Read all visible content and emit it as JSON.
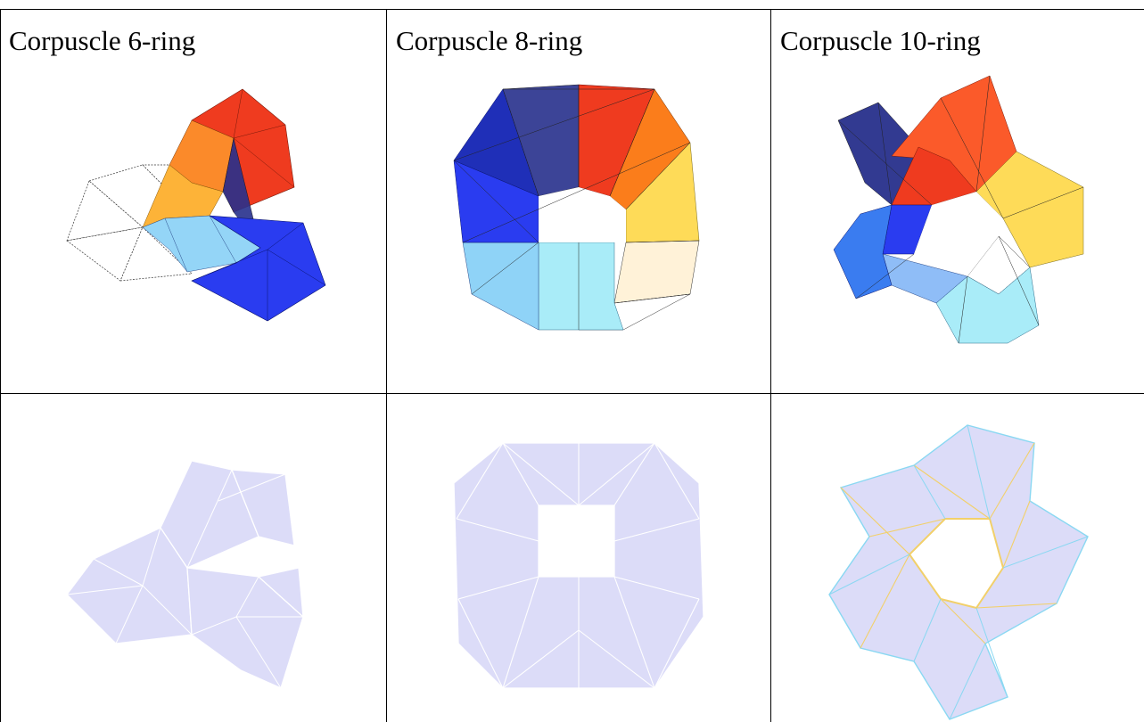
{
  "table": {
    "columns": [
      {
        "caption": "Corpuscle 6-ring"
      },
      {
        "caption": "Corpuscle 8-ring"
      },
      {
        "caption": "Corpuscle 10-ring"
      }
    ]
  },
  "palette": {
    "red": "#ef3b1f",
    "orange": "#fb7d1b",
    "amber": "#fdb338",
    "yellow": "#fedb58",
    "light_blue": "#8fd3f7",
    "cyan": "#a9ecf8",
    "blue": "#2a3cf0",
    "mid_blue": "#3a7cf0",
    "navy": "#28308c",
    "lavender": "#dcdcf8",
    "edge_yellow": "#f2d06a",
    "edge_cyan": "#8ad8f2"
  }
}
